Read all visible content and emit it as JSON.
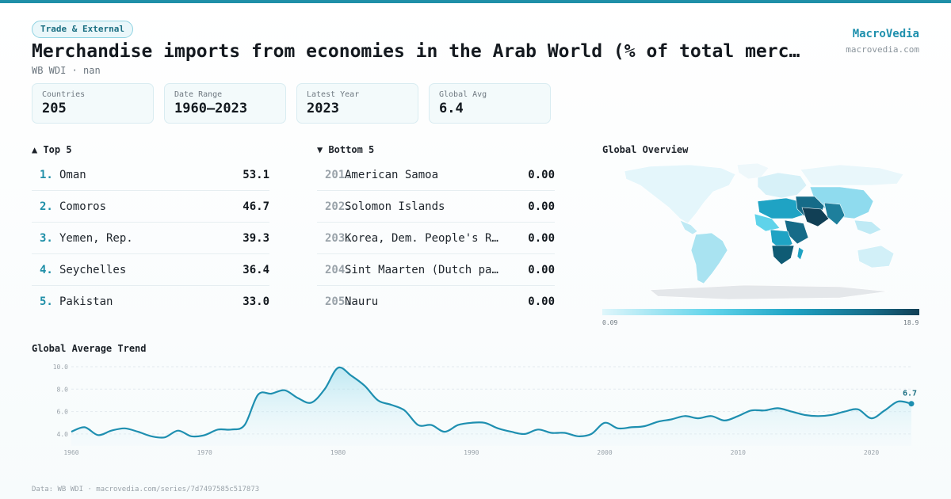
{
  "header": {
    "badge": "Trade & External",
    "title": "Merchandise imports from economies in the Arab World (% of total merchan…",
    "subtitle": "WB WDI · nan",
    "brand": "MacroVedia",
    "brand_url": "macrovedia.com"
  },
  "stats": [
    {
      "label": "Countries",
      "value": "205"
    },
    {
      "label": "Date Range",
      "value": "1960–2023"
    },
    {
      "label": "Latest Year",
      "value": "2023"
    },
    {
      "label": "Global Avg",
      "value": "6.4"
    }
  ],
  "top5": {
    "heading": "▲ Top 5",
    "rows": [
      {
        "rank": "1.",
        "name": "Oman",
        "value": "53.1"
      },
      {
        "rank": "2.",
        "name": "Comoros",
        "value": "46.7"
      },
      {
        "rank": "3.",
        "name": "Yemen, Rep.",
        "value": "39.3"
      },
      {
        "rank": "4.",
        "name": "Seychelles",
        "value": "36.4"
      },
      {
        "rank": "5.",
        "name": "Pakistan",
        "value": "33.0"
      }
    ]
  },
  "bottom5": {
    "heading": "▼ Bottom 5",
    "rows": [
      {
        "rank": "201.",
        "name": "American Samoa",
        "value": "0.00"
      },
      {
        "rank": "202.",
        "name": "Solomon Islands",
        "value": "0.00"
      },
      {
        "rank": "203.",
        "name": "Korea, Dem. People's Rep.",
        "value": "0.00"
      },
      {
        "rank": "204.",
        "name": "Sint Maarten (Dutch part)",
        "value": "0.00"
      },
      {
        "rank": "205.",
        "name": "Nauru",
        "value": "0.00"
      }
    ]
  },
  "map": {
    "heading": "Global Overview",
    "legend_min": "0.09",
    "legend_max": "18.9",
    "colors": {
      "low": "#dff6fb",
      "mid": "#1fa3c4",
      "high": "#113f55",
      "no_data": "#e4e7ea"
    }
  },
  "trend": {
    "heading": "Global Average Trend",
    "last_label": "6.7"
  },
  "footer": "Data: WB WDI · macrovedia.com/series/7d7497585c517873",
  "colors": {
    "accent": "#1f8fa8",
    "line": "#1e8fb0"
  },
  "chart_data": {
    "type": "area",
    "title": "Global Average Trend",
    "xlabel": "",
    "ylabel": "",
    "x": [
      1960,
      1961,
      1962,
      1963,
      1964,
      1965,
      1966,
      1967,
      1968,
      1969,
      1970,
      1971,
      1972,
      1973,
      1974,
      1975,
      1976,
      1977,
      1978,
      1979,
      1980,
      1981,
      1982,
      1983,
      1984,
      1985,
      1986,
      1987,
      1988,
      1989,
      1990,
      1991,
      1992,
      1993,
      1994,
      1995,
      1996,
      1997,
      1998,
      1999,
      2000,
      2001,
      2002,
      2003,
      2004,
      2005,
      2006,
      2007,
      2008,
      2009,
      2010,
      2011,
      2012,
      2013,
      2014,
      2015,
      2016,
      2017,
      2018,
      2019,
      2020,
      2021,
      2022,
      2023
    ],
    "values": [
      4.2,
      4.6,
      3.9,
      4.3,
      4.5,
      4.2,
      3.8,
      3.7,
      4.3,
      3.8,
      3.9,
      4.4,
      4.4,
      4.8,
      7.5,
      7.6,
      7.9,
      7.2,
      6.8,
      8.0,
      9.9,
      9.2,
      8.3,
      7.0,
      6.6,
      6.1,
      4.8,
      4.8,
      4.2,
      4.8,
      5.0,
      5.0,
      4.5,
      4.2,
      4.0,
      4.4,
      4.1,
      4.1,
      3.8,
      4.0,
      5.0,
      4.5,
      4.6,
      4.7,
      5.1,
      5.3,
      5.6,
      5.4,
      5.6,
      5.2,
      5.6,
      6.1,
      6.1,
      6.3,
      6.0,
      5.7,
      5.6,
      5.7,
      6.0,
      6.2,
      5.4,
      6.1,
      6.9,
      6.7
    ],
    "ylim": [
      3.5,
      10.0
    ],
    "yticks": [
      4.0,
      6.0,
      8.0,
      10.0
    ],
    "ytick_labels": [
      "4.0",
      "6.0",
      "8.0",
      "10.0"
    ],
    "xticks": [
      1960,
      1970,
      1980,
      1990,
      2000,
      2010,
      2020
    ],
    "xtick_labels": [
      "1960",
      "1970",
      "1980",
      "1990",
      "2000",
      "2010",
      "2020"
    ],
    "grid": true
  }
}
